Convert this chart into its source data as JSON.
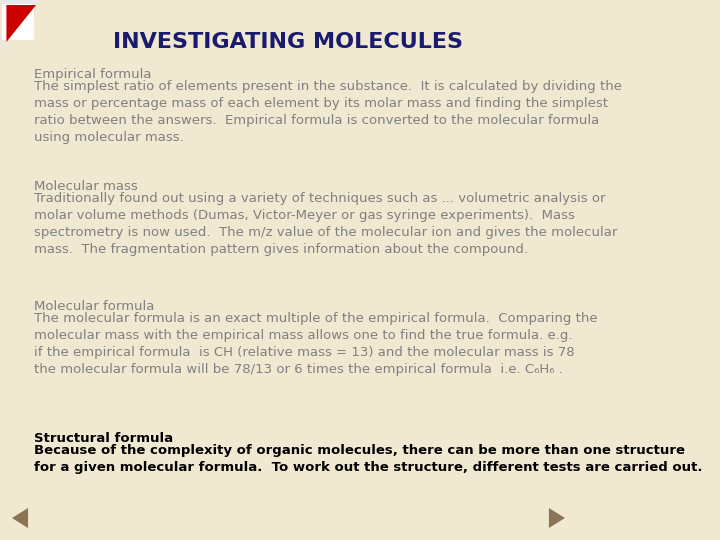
{
  "title": "INVESTIGATING MOLECULES",
  "title_color": "#1a1a6e",
  "title_fontsize": 16,
  "background_color": "#f0e8d0",
  "text_color_normal": "#808080",
  "text_color_bold": "#000000",
  "sections": [
    {
      "heading": "Empirical formula",
      "heading_bold": false,
      "heading_color": "#808080",
      "body": "The simplest ratio of elements present in the substance.  It is calculated by dividing the\nmass or percentage mass of each element by its molar mass and finding the simplest\nratio between the answers.  Empirical formula is converted to the molecular formula\nusing molecular mass.",
      "body_bold": false,
      "body_color": "#808080"
    },
    {
      "heading": "Molecular mass",
      "heading_bold": false,
      "heading_color": "#808080",
      "body": "Traditionally found out using a variety of techniques such as ... volumetric analysis or\nmolar volume methods (Dumas, Victor-Meyer or gas syringe experiments).  Mass\nspectrometry is now used.  The m/z value of the molecular ion and gives the molecular\nmass.  The fragmentation pattern gives information about the compound.",
      "body_bold": false,
      "body_color": "#808080"
    },
    {
      "heading": "Molecular formula",
      "heading_bold": false,
      "heading_color": "#808080",
      "body": "The molecular formula is an exact multiple of the empirical formula.  Comparing the\nmolecular mass with the empirical mass allows one to find the true formula. e.g.\nif the empirical formula  is CH (relative mass = 13) and the molecular mass is 78\nthe molecular formula will be 78/13 or 6 times the empirical formula  i.e. C₆H₆ .",
      "body_bold": false,
      "body_color": "#808080"
    },
    {
      "heading": "Structural formula",
      "heading_bold": true,
      "heading_color": "#000000",
      "body": "Because of the complexity of organic molecules, there can be more than one structure\nfor a given molecular formula.  To work out the structure, different tests are carried out.",
      "body_bold": true,
      "body_color": "#000000"
    }
  ],
  "arrow_left_color": "#8b6914",
  "arrow_right_color": "#8b6914"
}
